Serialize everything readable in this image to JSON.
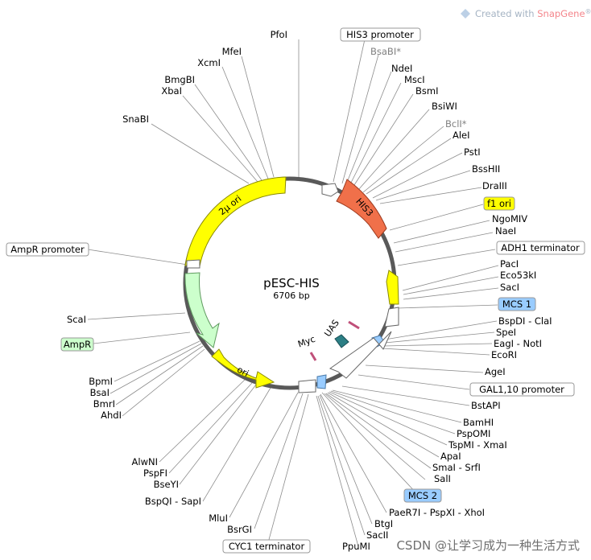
{
  "plasmid": {
    "name": "pESC-HIS",
    "length": "6706 bp"
  },
  "watermark": {
    "prefix": "Created with ",
    "brand": "SnapGene",
    "suffix": "®"
  },
  "csdn_watermark": "CSDN @让学习成为一种生活方式",
  "colors": {
    "backbone": "#595959",
    "yellow": "#ffff00",
    "his3": "#f0704a",
    "ampr": "#ccffcc",
    "mcs": "#99ccff",
    "ori_outline": "#8a8a00"
  },
  "features": [
    {
      "name": "2µ ori"
    },
    {
      "name": "HIS3"
    },
    {
      "name": "AmpR"
    },
    {
      "name": "ori"
    },
    {
      "name": "UAS"
    },
    {
      "name": "Myc"
    }
  ],
  "labels_top_left": [
    "PfoI",
    "MfeI",
    "XcmI",
    "BmgBI",
    "XbaI",
    "SnaBI"
  ],
  "labels_right": [
    "BsaBI*",
    "NdeI",
    "MscI",
    "BsmI",
    "BsiWI",
    "BclI*",
    "AleI",
    "PstI",
    "BssHII",
    "DraIII",
    "NgoMIV",
    "NaeI",
    "PacI",
    "Eco53kI",
    "SacI",
    "BspDI - ClaI",
    "SpeI",
    "EagI - NotI",
    "EcoRI",
    "AgeI",
    "BstAPI",
    "BamHI",
    "PspOMI",
    "TspMI - XmaI",
    "ApaI",
    "SmaI - SrfI",
    "SalI",
    "PaeR7I - PspXI - XhoI",
    "BtgI",
    "SacII",
    "PpuMI"
  ],
  "labels_left": [
    "ScaI",
    "BpmI",
    "BsaI",
    "BmrI",
    "AhdI",
    "AlwNI",
    "PspFI",
    "BseYI",
    "BspQI - SapI",
    "MluI",
    "BsrGI"
  ],
  "boxed_labels": [
    "HIS3 promoter",
    "f1 ori",
    "ADH1 terminator",
    "MCS 1",
    "GAL1,10 promoter",
    "MCS 2",
    "AmpR promoter",
    "AmpR",
    "CYC1 terminator"
  ]
}
